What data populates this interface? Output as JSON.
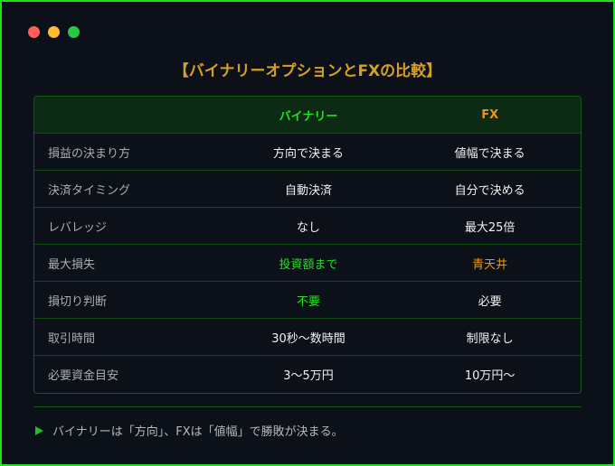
{
  "window": {
    "dots": [
      "#ff5f57",
      "#febc2e",
      "#28c840"
    ]
  },
  "title": "【バイナリーオプションとFXの比較】",
  "table": {
    "headers": [
      "",
      "バイナリー",
      "FX"
    ],
    "rows": [
      {
        "label": "損益の決まり方",
        "binary": "方向で決まる",
        "fx": "値幅で決まる"
      },
      {
        "label": "決済タイミング",
        "binary": "自動決済",
        "fx": "自分で決める"
      },
      {
        "label": "レバレッジ",
        "binary": "なし",
        "fx": "最大25倍"
      },
      {
        "label": "最大損失",
        "binary": "投資額まで",
        "fx": "青天井"
      },
      {
        "label": "損切り判断",
        "binary": "不要",
        "fx": "必要"
      },
      {
        "label": "取引時間",
        "binary": "30秒〜数時間",
        "fx": "制限なし"
      },
      {
        "label": "必要資金目安",
        "binary": "3〜5万円",
        "fx": "10万円〜"
      }
    ]
  },
  "note": "バイナリーは「方向」、FXは「値幅」で勝敗が決まる。",
  "colors": {
    "accent_green": "#22e022",
    "accent_orange": "#f0960a",
    "title_gold": "#d4a124"
  }
}
